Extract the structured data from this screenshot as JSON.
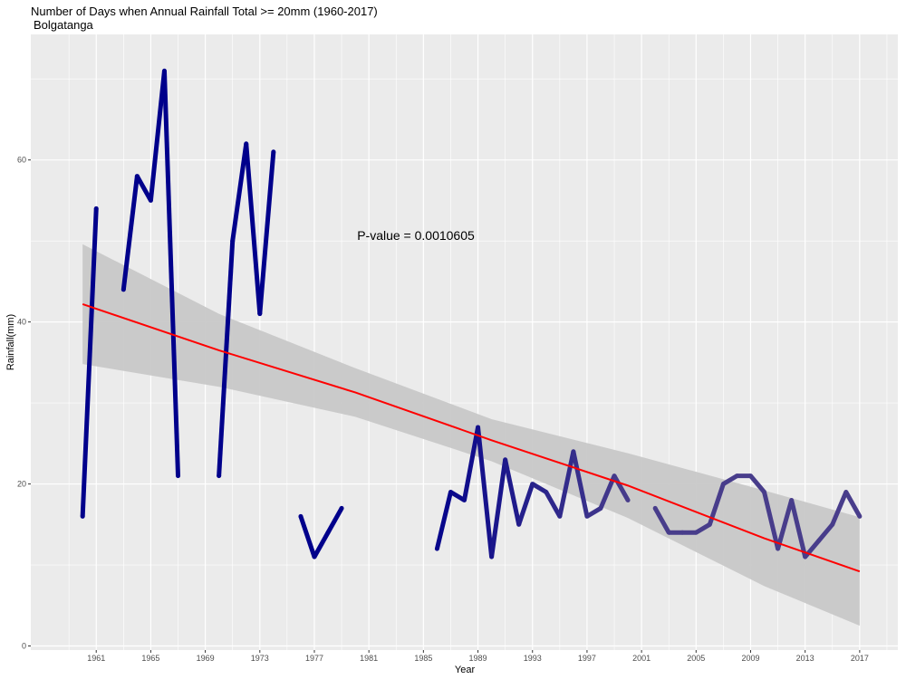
{
  "chart_data": {
    "type": "line",
    "title": "Number of Days when Annual Rainfall Total >= 20mm (1960-2017)",
    "subtitle": "Bolgatanga",
    "xlabel": "Year",
    "ylabel": "Rainfall(mm)",
    "xlim": [
      1956.2,
      2019.8
    ],
    "ylim": [
      -0.5,
      75.5
    ],
    "x_ticks": [
      1961,
      1965,
      1969,
      1973,
      1977,
      1981,
      1985,
      1989,
      1993,
      1997,
      2001,
      2005,
      2009,
      2013,
      2017
    ],
    "y_ticks": [
      0,
      20,
      40,
      60
    ],
    "grid": true,
    "legend": "none",
    "annotation": "P-value = 0.0010605",
    "series": [
      {
        "color_range": [
          "#00008b",
          "#483d8b"
        ],
        "segments": [
          [
            [
              1960,
              16
            ],
            [
              1961,
              54
            ]
          ],
          [
            [
              1963,
              44
            ],
            [
              1964,
              58
            ],
            [
              1965,
              55
            ],
            [
              1966,
              71
            ],
            [
              1967,
              21
            ]
          ],
          [
            [
              1970,
              21
            ],
            [
              1971,
              50
            ],
            [
              1972,
              62
            ],
            [
              1973,
              41
            ],
            [
              1974,
              61
            ]
          ],
          [
            [
              1976,
              16
            ],
            [
              1977,
              11
            ],
            [
              1978,
              14
            ],
            [
              1979,
              17
            ]
          ],
          [
            [
              1986,
              12
            ],
            [
              1987,
              19
            ],
            [
              1988,
              18
            ],
            [
              1989,
              27
            ],
            [
              1990,
              11
            ],
            [
              1991,
              23
            ],
            [
              1992,
              15
            ],
            [
              1993,
              20
            ],
            [
              1994,
              19
            ],
            [
              1995,
              16
            ],
            [
              1996,
              24
            ],
            [
              1997,
              16
            ],
            [
              1998,
              17
            ],
            [
              1999,
              21
            ],
            [
              2000,
              18
            ]
          ],
          [
            [
              2002,
              17
            ],
            [
              2003,
              14
            ],
            [
              2004,
              14
            ],
            [
              2005,
              14
            ],
            [
              2006,
              15
            ],
            [
              2007,
              20
            ],
            [
              2008,
              21
            ],
            [
              2009,
              21
            ],
            [
              2010,
              19
            ],
            [
              2011,
              12
            ],
            [
              2012,
              18
            ],
            [
              2013,
              11
            ],
            [
              2014,
              13
            ],
            [
              2015,
              15
            ],
            [
              2016,
              19
            ],
            [
              2017,
              16
            ]
          ]
        ]
      }
    ],
    "trend": {
      "color": "#ff0000",
      "band_color": "#c8c8c8",
      "points": [
        {
          "x": 1960,
          "y": 42.2,
          "lo": 34.8,
          "hi": 49.6
        },
        {
          "x": 1970,
          "y": 36.5,
          "lo": 32.0,
          "hi": 41.0
        },
        {
          "x": 1980,
          "y": 31.3,
          "lo": 28.3,
          "hi": 34.3
        },
        {
          "x": 1990,
          "y": 25.4,
          "lo": 22.8,
          "hi": 28.0
        },
        {
          "x": 2000,
          "y": 19.8,
          "lo": 15.8,
          "hi": 23.8
        },
        {
          "x": 2010,
          "y": 13.3,
          "lo": 7.4,
          "hi": 19.2
        },
        {
          "x": 2017,
          "y": 9.2,
          "lo": 2.5,
          "hi": 15.9
        }
      ]
    },
    "colors": {
      "panel_background": "#ebebeb",
      "grid_major": "#ffffff",
      "series_start": "#00008b",
      "series_end": "#483d8b",
      "trend_line": "#ff0000"
    }
  }
}
